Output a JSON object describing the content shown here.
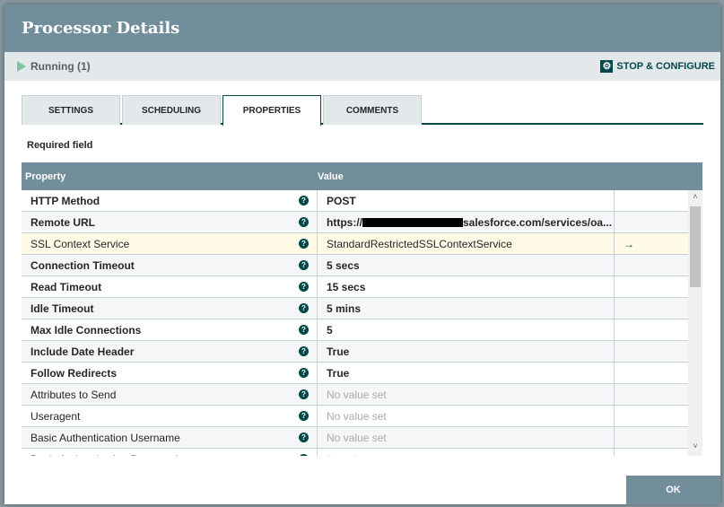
{
  "dialog": {
    "title": "Processor Details"
  },
  "status": {
    "state": "Running",
    "count": "(1)",
    "stop_configure": "STOP & CONFIGURE"
  },
  "tabs": [
    {
      "label": "SETTINGS"
    },
    {
      "label": "SCHEDULING"
    },
    {
      "label": "PROPERTIES",
      "active": true
    },
    {
      "label": "COMMENTS"
    }
  ],
  "required_label": "Required field",
  "table": {
    "headers": {
      "property": "Property",
      "value": "Value"
    },
    "rows": [
      {
        "name": "HTTP Method",
        "value": "POST",
        "required": true
      },
      {
        "name": "Remote URL",
        "value_prefix": "https://",
        "value": "salesforce.com/services/oa...",
        "required": true,
        "redacted": true
      },
      {
        "name": "SSL Context Service",
        "value": "StandardRestrictedSSLContextService",
        "required": false,
        "highlighted": true,
        "action": "→"
      },
      {
        "name": "Connection Timeout",
        "value": "5 secs",
        "required": true
      },
      {
        "name": "Read Timeout",
        "value": "15 secs",
        "required": true
      },
      {
        "name": "Idle Timeout",
        "value": "5 mins",
        "required": true
      },
      {
        "name": "Max Idle Connections",
        "value": "5",
        "required": true
      },
      {
        "name": "Include Date Header",
        "value": "True",
        "required": true
      },
      {
        "name": "Follow Redirects",
        "value": "True",
        "required": true
      },
      {
        "name": "Attributes to Send",
        "value": "No value set",
        "required": false,
        "empty": true
      },
      {
        "name": "Useragent",
        "value": "No value set",
        "required": false,
        "empty": true
      },
      {
        "name": "Basic Authentication Username",
        "value": "No value set",
        "required": false,
        "empty": true
      },
      {
        "name": "Basic Authentication Password",
        "value": "No value set",
        "required": false,
        "empty": true
      }
    ]
  },
  "ok_label": "OK",
  "colors": {
    "header": "#728e9b",
    "accent": "#004849",
    "running": "#7dc7a0",
    "highlight": "#fffbe6"
  }
}
